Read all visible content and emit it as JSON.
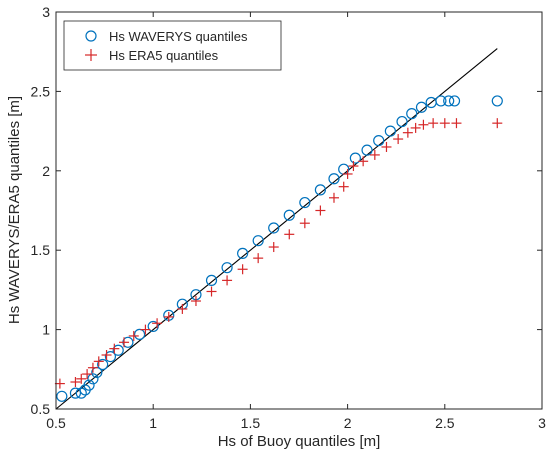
{
  "chart_data": {
    "type": "scatter",
    "title": "",
    "xlabel": "Hs of Buoy quantiles [m]",
    "ylabel": "Hs WAVERYS/ERA5 quantiles [m]",
    "xlim": [
      0.5,
      3
    ],
    "ylim": [
      0.5,
      3
    ],
    "xticks": [
      "0.5",
      "1",
      "1.5",
      "2",
      "2.5",
      "3"
    ],
    "yticks": [
      "0.5",
      "1",
      "1.5",
      "2",
      "2.5",
      "3"
    ],
    "grid": false,
    "legend_position": "top-left",
    "reference_line": {
      "from": [
        0.5,
        0.5
      ],
      "to": [
        2.77,
        2.77
      ],
      "color": "#000000"
    },
    "series": [
      {
        "name": "Hs WAVERYS quantiles",
        "marker": "circle",
        "color": "#0072BD",
        "points": [
          [
            0.53,
            0.58
          ],
          [
            0.6,
            0.6
          ],
          [
            0.63,
            0.6
          ],
          [
            0.65,
            0.62
          ],
          [
            0.67,
            0.65
          ],
          [
            0.69,
            0.69
          ],
          [
            0.71,
            0.73
          ],
          [
            0.74,
            0.78
          ],
          [
            0.78,
            0.83
          ],
          [
            0.82,
            0.87
          ],
          [
            0.87,
            0.92
          ],
          [
            0.93,
            0.97
          ],
          [
            1.0,
            1.02
          ],
          [
            1.08,
            1.09
          ],
          [
            1.15,
            1.16
          ],
          [
            1.22,
            1.22
          ],
          [
            1.3,
            1.31
          ],
          [
            1.38,
            1.39
          ],
          [
            1.46,
            1.48
          ],
          [
            1.54,
            1.56
          ],
          [
            1.62,
            1.64
          ],
          [
            1.7,
            1.72
          ],
          [
            1.78,
            1.8
          ],
          [
            1.86,
            1.88
          ],
          [
            1.93,
            1.95
          ],
          [
            1.98,
            2.01
          ],
          [
            2.04,
            2.08
          ],
          [
            2.1,
            2.13
          ],
          [
            2.16,
            2.19
          ],
          [
            2.22,
            2.25
          ],
          [
            2.28,
            2.31
          ],
          [
            2.33,
            2.36
          ],
          [
            2.38,
            2.4
          ],
          [
            2.43,
            2.43
          ],
          [
            2.48,
            2.44
          ],
          [
            2.52,
            2.44
          ],
          [
            2.55,
            2.44
          ],
          [
            2.77,
            2.44
          ]
        ]
      },
      {
        "name": "Hs ERA5 quantiles",
        "marker": "plus",
        "color": "#D62728",
        "points": [
          [
            0.52,
            0.66
          ],
          [
            0.6,
            0.67
          ],
          [
            0.63,
            0.69
          ],
          [
            0.66,
            0.72
          ],
          [
            0.69,
            0.76
          ],
          [
            0.72,
            0.8
          ],
          [
            0.76,
            0.84
          ],
          [
            0.8,
            0.88
          ],
          [
            0.85,
            0.92
          ],
          [
            0.9,
            0.96
          ],
          [
            0.96,
            1.0
          ],
          [
            1.02,
            1.04
          ],
          [
            1.08,
            1.08
          ],
          [
            1.15,
            1.13
          ],
          [
            1.22,
            1.18
          ],
          [
            1.3,
            1.24
          ],
          [
            1.38,
            1.31
          ],
          [
            1.46,
            1.38
          ],
          [
            1.54,
            1.45
          ],
          [
            1.62,
            1.52
          ],
          [
            1.7,
            1.6
          ],
          [
            1.78,
            1.67
          ],
          [
            1.86,
            1.75
          ],
          [
            1.93,
            1.83
          ],
          [
            1.98,
            1.9
          ],
          [
            2.0,
            1.98
          ],
          [
            2.03,
            2.03
          ],
          [
            2.08,
            2.06
          ],
          [
            2.14,
            2.1
          ],
          [
            2.2,
            2.15
          ],
          [
            2.26,
            2.2
          ],
          [
            2.31,
            2.24
          ],
          [
            2.35,
            2.27
          ],
          [
            2.39,
            2.29
          ],
          [
            2.44,
            2.3
          ],
          [
            2.5,
            2.3
          ],
          [
            2.56,
            2.3
          ],
          [
            2.77,
            2.3
          ]
        ]
      }
    ]
  }
}
